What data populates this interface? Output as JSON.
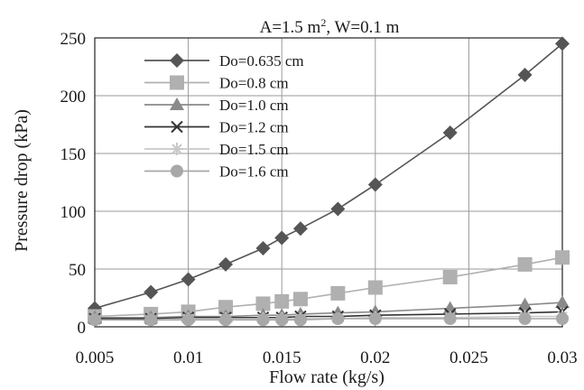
{
  "chart_data": {
    "type": "line",
    "title_main": "A=1.5 m",
    "title_sup": "2",
    "title_rest": ", W=0.1 m",
    "xlabel": "Flow rate (kg/s)",
    "ylabel": "Pressure drop (kPa)",
    "xlim": [
      0.005,
      0.03
    ],
    "ylim": [
      0,
      250
    ],
    "xticks": [
      "0.005",
      "0.01",
      "0.015",
      "0.02",
      "0.025",
      "0.03"
    ],
    "yticks": [
      "0",
      "50",
      "100",
      "150",
      "200",
      "250"
    ],
    "grid": true,
    "legend_position": "top-left",
    "x": [
      0.005,
      0.008,
      0.01,
      0.012,
      0.014,
      0.015,
      0.016,
      0.018,
      0.02,
      0.024,
      0.028,
      0.03
    ],
    "series": [
      {
        "name": "Do=0.635 cm",
        "marker": "diamond",
        "color": "#555555",
        "values": [
          16,
          30,
          41,
          54,
          68,
          77,
          85,
          102,
          123,
          168,
          218,
          245
        ]
      },
      {
        "name": "Do=0.8 cm",
        "marker": "square",
        "color": "#b0b0b0",
        "values": [
          9,
          11,
          13,
          17,
          20,
          22,
          24,
          29,
          34,
          43,
          54,
          60
        ]
      },
      {
        "name": "Do=1.0 cm",
        "marker": "triangle",
        "color": "#8a8a8a",
        "values": [
          8,
          8,
          9,
          9,
          10,
          10,
          11,
          12,
          13,
          16,
          19,
          21
        ]
      },
      {
        "name": "Do=1.2 cm",
        "marker": "x",
        "color": "#333333",
        "values": [
          7,
          7,
          8,
          8,
          8,
          8,
          9,
          9,
          10,
          11,
          12,
          13
        ]
      },
      {
        "name": "Do=1.5 cm",
        "marker": "asterisk",
        "color": "#c8c8c8",
        "values": [
          6,
          6,
          7,
          7,
          7,
          7,
          7,
          7,
          8,
          8,
          9,
          9
        ]
      },
      {
        "name": "Do=1.6 cm",
        "marker": "circle",
        "color": "#a8a8a8",
        "values": [
          6,
          6,
          6,
          6,
          6,
          6,
          6,
          7,
          7,
          7,
          7,
          7
        ]
      }
    ]
  }
}
